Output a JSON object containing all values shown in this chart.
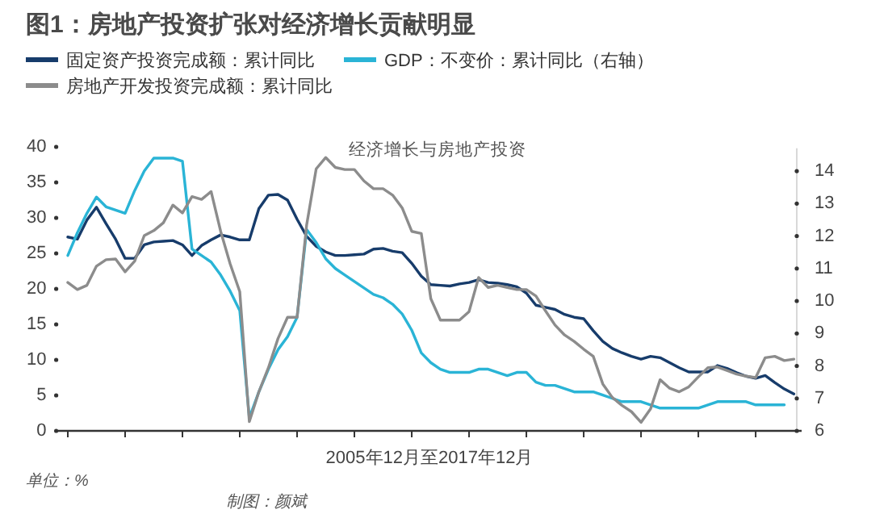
{
  "chart_data": {
    "type": "line",
    "title": "图1：房地产投资扩张对经济增长贡献明显",
    "subtitle": "经济增长与房地产投资",
    "xlabel": "2005年12月至2017年12月",
    "annotations": [
      "单位：%",
      "制图：颜斌"
    ],
    "legend": "top",
    "tick_labels": "y",
    "grid": false,
    "categories": [
      null,
      null,
      null,
      null,
      null,
      null,
      null,
      null,
      null,
      null,
      null,
      null,
      null,
      null,
      null,
      null,
      null,
      null,
      null,
      null,
      null,
      null,
      null,
      null,
      null,
      null,
      null,
      null,
      null,
      null,
      null,
      null,
      null,
      null,
      null,
      null,
      null,
      null,
      null,
      null,
      null,
      null,
      null,
      null,
      null,
      null,
      null,
      null,
      null,
      null,
      null,
      null,
      null,
      null,
      null,
      null,
      null,
      null,
      null,
      null,
      null,
      null,
      null,
      null,
      null,
      null,
      null,
      null,
      null,
      null,
      null,
      null,
      null,
      null,
      null,
      null,
      null
    ],
    "ylim": [
      0,
      40
    ],
    "yticks": [
      0,
      5,
      10,
      15,
      20,
      25,
      30,
      35,
      40
    ],
    "y2lim": [
      6,
      14.7
    ],
    "y2ticks": [
      6,
      7,
      8,
      9,
      10,
      11,
      12,
      13,
      14
    ],
    "series": [
      {
        "name": "固定资产投资完成额：累计同比",
        "color": "#173c6b",
        "values": [
          27.3,
          27,
          29.7,
          31.5,
          29.2,
          27,
          24.3,
          24.3,
          26.2,
          26.6,
          26.7,
          26.8,
          26.2,
          24.7,
          26.1,
          26.9,
          27.6,
          27.3,
          26.9,
          26.9,
          31.3,
          33.2,
          33.3,
          32.5,
          29.8,
          27.4,
          26,
          25.2,
          24.7,
          24.7,
          24.8,
          24.9,
          25.6,
          25.7,
          25.3,
          25.1,
          23.6,
          21.8,
          20.6,
          20.5,
          20.4,
          20.7,
          20.9,
          21.3,
          20.9,
          20.8,
          20.6,
          20.3,
          19.4,
          17.7,
          17.4,
          17.1,
          16.4,
          16,
          15.8,
          14.1,
          12.6,
          11.6,
          11,
          10.5,
          10.1,
          10.5,
          10.3,
          9.6,
          8.9,
          8.3,
          8.3,
          8.3,
          9.2,
          8.8,
          8.2,
          7.7,
          7.4,
          7.8,
          6.8,
          5.9,
          5.2
        ]
      },
      {
        "name": "GDP：不变价：累计同比（右轴）",
        "color": "#2ab4d6",
        "axis": "y2",
        "values": [
          11.4,
          12.1,
          12.7,
          13.2,
          12.9,
          12.8,
          12.7,
          13.4,
          14,
          14.4,
          14.4,
          14.4,
          14.3,
          11.6,
          11.4,
          11.2,
          10.8,
          10.3,
          9.7,
          6.4,
          7.2,
          7.9,
          8.5,
          8.9,
          9.5,
          12.2,
          11.8,
          11.3,
          11,
          10.8,
          10.6,
          10.4,
          10.2,
          10.1,
          9.9,
          9.6,
          9.1,
          8.4,
          8.1,
          7.9,
          7.8,
          7.8,
          7.8,
          7.9,
          7.9,
          7.8,
          7.7,
          7.8,
          7.8,
          7.5,
          7.4,
          7.4,
          7.3,
          7.2,
          7.2,
          7.2,
          7.1,
          7,
          6.9,
          6.9,
          6.9,
          6.8,
          6.7,
          6.7,
          6.7,
          6.7,
          6.7,
          6.8,
          6.9,
          6.9,
          6.9,
          6.9,
          6.8,
          6.8,
          6.8,
          6.8,
          null
        ]
      },
      {
        "name": "房地产开发投资完成额：累计同比",
        "color": "#8c8c8c",
        "values": [
          20.9,
          19.9,
          20.5,
          23.2,
          24.1,
          24.2,
          22.4,
          23.9,
          27.5,
          28.2,
          29.3,
          31.8,
          30.7,
          33,
          32.6,
          33.7,
          28.1,
          23.5,
          19.6,
          1.3,
          5.5,
          8.9,
          13,
          16,
          16,
          29,
          36.9,
          38.5,
          37.1,
          36.8,
          36.8,
          35.2,
          34.1,
          34.1,
          33.2,
          31.4,
          28.1,
          27.8,
          18.6,
          15.6,
          15.6,
          15.6,
          16.8,
          21.6,
          20.2,
          20.5,
          20.2,
          19.9,
          19.9,
          19,
          16.9,
          14.9,
          13.5,
          12.6,
          11.5,
          10.5,
          6.6,
          4.7,
          3.6,
          2.7,
          1.2,
          3.1,
          7.2,
          6,
          5.5,
          6.2,
          7.6,
          8.9,
          9,
          8.5,
          8,
          7.7,
          7.5,
          10.3,
          10.5,
          9.9,
          10.1
        ]
      }
    ]
  }
}
